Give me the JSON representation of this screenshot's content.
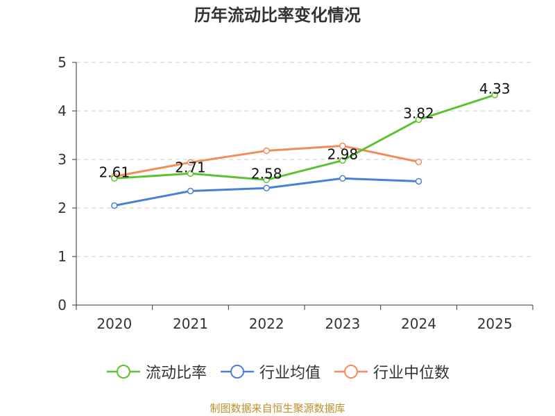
{
  "chart_data": {
    "type": "line",
    "title": "历年流动比率变化情况",
    "categories": [
      "2020",
      "2021",
      "2022",
      "2023",
      "2024",
      "2025"
    ],
    "yticks": [
      "0",
      "1",
      "2",
      "3",
      "4",
      "5"
    ],
    "ylim": [
      0,
      5
    ],
    "grid": true,
    "legend_position": "bottom",
    "series": [
      {
        "name": "流动比率",
        "color": "#5cc230",
        "values": [
          2.61,
          2.71,
          2.58,
          2.98,
          3.82,
          4.33
        ],
        "labels": [
          "2.61",
          "2.71",
          "2.58",
          "2.98",
          "3.82",
          "4.33"
        ]
      },
      {
        "name": "行业均值",
        "color": "#4a7fd8",
        "values": [
          2.05,
          2.35,
          2.41,
          2.61,
          2.55,
          null
        ]
      },
      {
        "name": "行业中位数",
        "color": "#f28c5a",
        "values": [
          2.65,
          2.94,
          3.18,
          3.28,
          2.95,
          null
        ]
      }
    ]
  },
  "source_note": "制图数据来自恒生聚源数据库"
}
